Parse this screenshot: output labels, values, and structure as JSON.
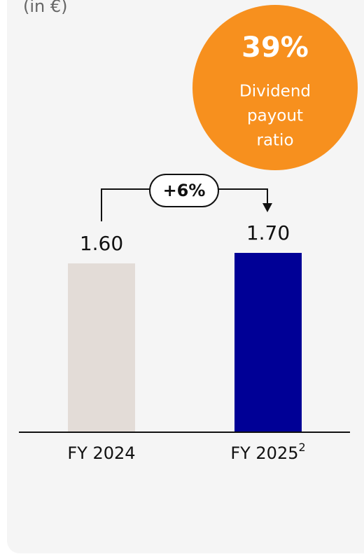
{
  "chart_data": {
    "type": "bar",
    "subtitle": "(in €)",
    "categories": [
      "FY 2024",
      "FY 2025"
    ],
    "category_notes": [
      null,
      "2"
    ],
    "values": [
      1.6,
      1.7
    ],
    "value_labels": [
      "1.60",
      "1.70"
    ],
    "colors": [
      "#e3dcd7",
      "#000096"
    ],
    "change_label": "+6%",
    "badge": {
      "value": 39,
      "value_label": "39%",
      "label_lines": [
        "Dividend",
        "payout",
        "ratio"
      ],
      "color": "#f7901e"
    }
  }
}
